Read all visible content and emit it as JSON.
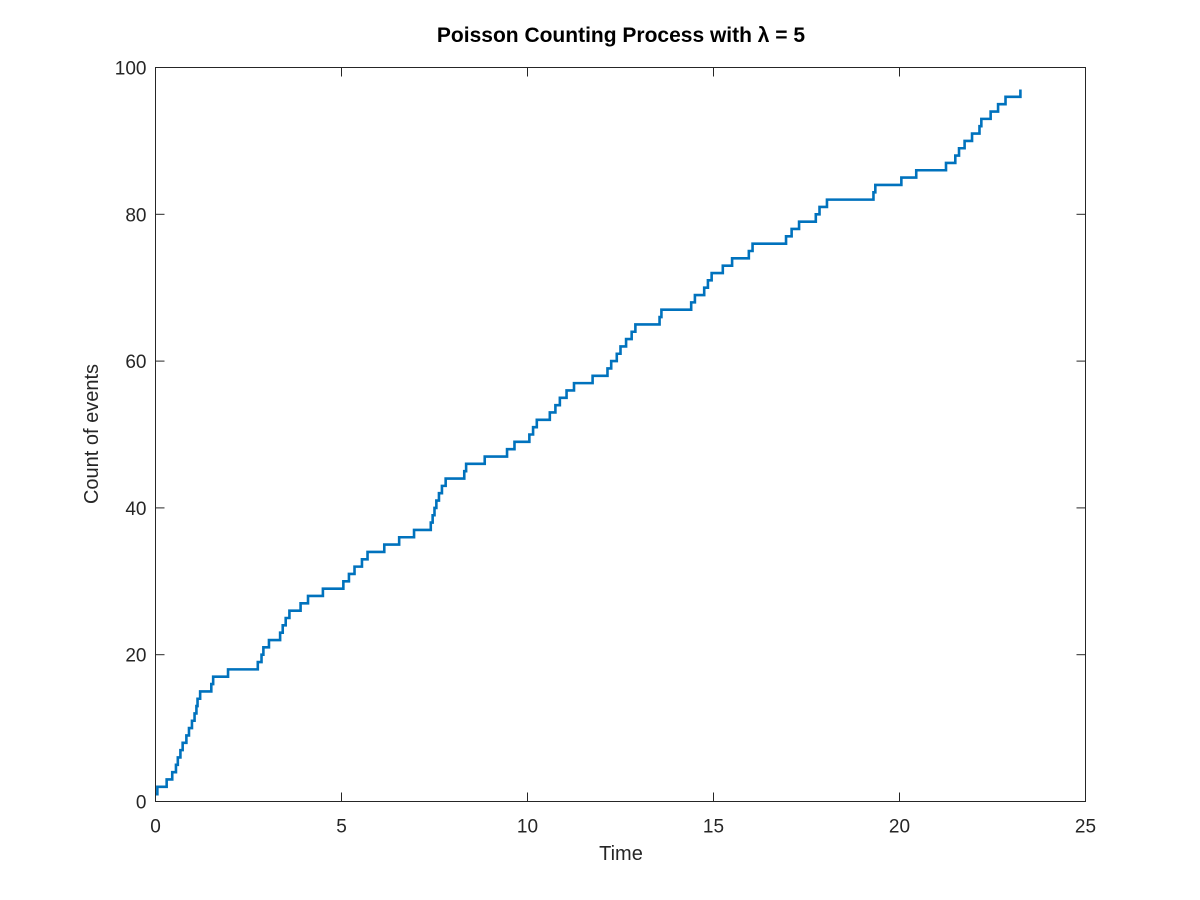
{
  "chart_data": {
    "type": "line",
    "step": true,
    "title": "Poisson Counting Process with λ = 5",
    "xlabel": "Time",
    "ylabel": "Count of events",
    "xlim": [
      0,
      25
    ],
    "ylim": [
      0,
      100
    ],
    "xticks": [
      0,
      5,
      10,
      15,
      20,
      25
    ],
    "yticks": [
      0,
      20,
      40,
      60,
      80,
      100
    ],
    "grid": false,
    "legend": "none",
    "series": [
      {
        "color": "#0072BD",
        "x": [
          0.05,
          0.3,
          0.45,
          0.55,
          0.6,
          0.67,
          0.73,
          0.83,
          0.9,
          0.98,
          1.05,
          1.1,
          1.13,
          1.2,
          1.5,
          1.55,
          1.95,
          2.75,
          2.85,
          2.9,
          3.05,
          3.35,
          3.42,
          3.5,
          3.6,
          3.9,
          4.1,
          4.5,
          5.05,
          5.2,
          5.35,
          5.55,
          5.7,
          6.15,
          6.55,
          6.95,
          7.4,
          7.45,
          7.5,
          7.55,
          7.62,
          7.7,
          7.8,
          8.3,
          8.35,
          8.85,
          9.45,
          9.65,
          10.05,
          10.15,
          10.25,
          10.6,
          10.75,
          10.87,
          11.05,
          11.25,
          11.75,
          12.15,
          12.25,
          12.4,
          12.5,
          12.65,
          12.8,
          12.9,
          13.55,
          13.6,
          14.4,
          14.5,
          14.75,
          14.85,
          14.95,
          15.25,
          15.5,
          15.95,
          16.05,
          16.95,
          17.1,
          17.3,
          17.75,
          17.85,
          18.05,
          19.3,
          19.35,
          20.05,
          20.45,
          21.25,
          21.5,
          21.6,
          21.75,
          21.95,
          22.15,
          22.2,
          22.45,
          22.65,
          22.85,
          23.25
        ]
      }
    ]
  }
}
